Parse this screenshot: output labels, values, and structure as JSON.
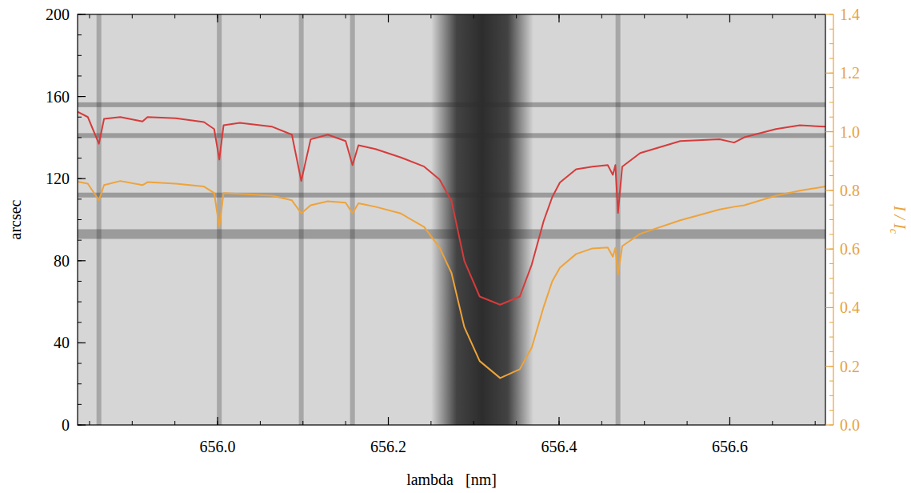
{
  "chart_data": {
    "type": "line",
    "x_label": "lambda   [nm]",
    "y_label": "arcsec",
    "y2_label": "I / Ic",
    "x": [
      655.836,
      655.848,
      655.861,
      655.867,
      655.886,
      655.912,
      655.918,
      655.951,
      655.984,
      655.996,
      656.002,
      656.007,
      656.026,
      656.064,
      656.087,
      656.098,
      656.109,
      656.129,
      656.15,
      656.158,
      656.165,
      656.185,
      656.214,
      656.242,
      656.26,
      656.274,
      656.289,
      656.307,
      656.331,
      656.354,
      656.368,
      656.382,
      656.392,
      656.401,
      656.42,
      656.439,
      656.457,
      656.463,
      656.466,
      656.469,
      656.474,
      656.495,
      656.542,
      656.588,
      656.605,
      656.617,
      656.654,
      656.682,
      656.712
    ],
    "xlim": [
      655.836,
      656.712
    ],
    "xticks": [
      {
        "value": 656,
        "label": "656.0"
      },
      656.2,
      656.4,
      656.6
    ],
    "ylim": [
      0,
      200
    ],
    "yticks": [
      0,
      40,
      80,
      120,
      160,
      200
    ],
    "y2lim": [
      0,
      1.4
    ],
    "y2ticks": [
      {
        "value": 0,
        "label": "0.0"
      },
      0.2,
      0.4,
      0.6,
      0.8,
      {
        "value": 1,
        "label": "1.0"
      },
      1.2,
      1.4
    ],
    "series": [
      {
        "color": "#d63b3b",
        "axis": "y2",
        "values": [
          1.068,
          1.05,
          0.959,
          1.044,
          1.05,
          1.035,
          1.05,
          1.046,
          1.033,
          1.009,
          0.905,
          1.022,
          1.03,
          1.017,
          0.99,
          0.832,
          0.974,
          0.99,
          0.968,
          0.886,
          0.954,
          0.941,
          0.913,
          0.881,
          0.837,
          0.764,
          0.56,
          0.438,
          0.41,
          0.438,
          0.547,
          0.696,
          0.777,
          0.827,
          0.872,
          0.881,
          0.886,
          0.853,
          0.886,
          0.723,
          0.881,
          0.927,
          0.968,
          0.974,
          0.963,
          0.981,
          1.009,
          1.022,
          1.017
        ]
      },
      {
        "color": "#eea33a",
        "axis": "y2",
        "values": [
          0.83,
          0.823,
          0.766,
          0.818,
          0.832,
          0.818,
          0.828,
          0.823,
          0.813,
          0.791,
          0.675,
          0.791,
          0.788,
          0.782,
          0.766,
          0.722,
          0.749,
          0.763,
          0.758,
          0.722,
          0.756,
          0.744,
          0.722,
          0.675,
          0.605,
          0.518,
          0.334,
          0.218,
          0.16,
          0.19,
          0.264,
          0.403,
          0.49,
          0.536,
          0.583,
          0.602,
          0.605,
          0.574,
          0.604,
          0.514,
          0.61,
          0.652,
          0.698,
          0.735,
          0.744,
          0.749,
          0.782,
          0.799,
          0.813
        ]
      }
    ],
    "spectrogram": {
      "line_wavelengths": [
        655.861,
        656.002,
        656.098,
        656.158,
        656.469
      ],
      "core_range": [
        656.25,
        656.37
      ],
      "band_arcsec": [
        93,
        112,
        141,
        156
      ]
    }
  }
}
